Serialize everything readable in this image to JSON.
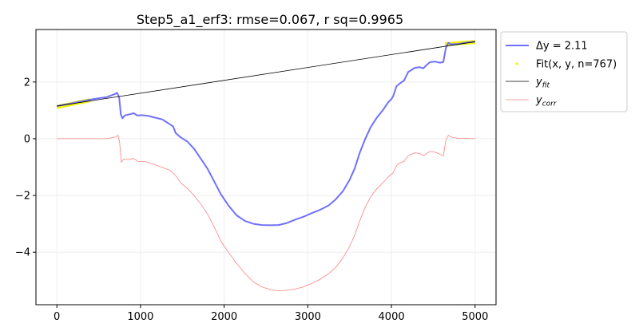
{
  "chart_data": {
    "type": "line",
    "title": "Step5_a1_erf3: rmse=0.067, r sq=0.9965",
    "xlabel": "",
    "ylabel": "",
    "xlim": [
      -250,
      5250
    ],
    "ylim": [
      -5.85,
      3.85
    ],
    "x_ticks": [
      0,
      1000,
      2000,
      3000,
      4000,
      5000
    ],
    "y_ticks": [
      -4,
      -2,
      0,
      2
    ],
    "x_tick_labels": [
      "0",
      "1000",
      "2000",
      "3000",
      "4000",
      "5000"
    ],
    "y_tick_labels": [
      "−4",
      "−2",
      "0",
      "2"
    ],
    "grid": true,
    "legend_position": "outside-right",
    "series": [
      {
        "name": "Δy = 2.11",
        "color": "#7070ff",
        "style": "line",
        "points": [
          [
            0,
            1.15
          ],
          [
            200,
            1.26
          ],
          [
            400,
            1.38
          ],
          [
            600,
            1.47
          ],
          [
            700,
            1.58
          ],
          [
            720,
            1.62
          ],
          [
            745,
            1.45
          ],
          [
            765,
            0.85
          ],
          [
            785,
            0.72
          ],
          [
            810,
            0.82
          ],
          [
            870,
            0.86
          ],
          [
            920,
            0.9
          ],
          [
            960,
            0.82
          ],
          [
            1020,
            0.83
          ],
          [
            1100,
            0.8
          ],
          [
            1180,
            0.74
          ],
          [
            1260,
            0.68
          ],
          [
            1330,
            0.55
          ],
          [
            1390,
            0.43
          ],
          [
            1420,
            0.2
          ],
          [
            1480,
            0.05
          ],
          [
            1560,
            -0.1
          ],
          [
            1640,
            -0.35
          ],
          [
            1720,
            -0.7
          ],
          [
            1800,
            -1.05
          ],
          [
            1880,
            -1.5
          ],
          [
            1960,
            -1.95
          ],
          [
            2050,
            -2.35
          ],
          [
            2150,
            -2.7
          ],
          [
            2250,
            -2.9
          ],
          [
            2350,
            -3.0
          ],
          [
            2450,
            -3.04
          ],
          [
            2550,
            -3.05
          ],
          [
            2650,
            -3.04
          ],
          [
            2750,
            -2.97
          ],
          [
            2850,
            -2.85
          ],
          [
            2950,
            -2.75
          ],
          [
            3050,
            -2.62
          ],
          [
            3150,
            -2.5
          ],
          [
            3250,
            -2.35
          ],
          [
            3330,
            -2.15
          ],
          [
            3420,
            -1.85
          ],
          [
            3500,
            -1.45
          ],
          [
            3560,
            -1.05
          ],
          [
            3620,
            -0.5
          ],
          [
            3680,
            -0.05
          ],
          [
            3750,
            0.4
          ],
          [
            3820,
            0.72
          ],
          [
            3900,
            1.02
          ],
          [
            3960,
            1.28
          ],
          [
            4000,
            1.4
          ],
          [
            4020,
            1.5
          ],
          [
            4060,
            1.85
          ],
          [
            4100,
            1.95
          ],
          [
            4150,
            2.05
          ],
          [
            4200,
            2.35
          ],
          [
            4280,
            2.5
          ],
          [
            4340,
            2.52
          ],
          [
            4380,
            2.48
          ],
          [
            4420,
            2.6
          ],
          [
            4460,
            2.7
          ],
          [
            4520,
            2.72
          ],
          [
            4580,
            2.68
          ],
          [
            4620,
            2.7
          ],
          [
            4650,
            3.2
          ],
          [
            4680,
            3.38
          ],
          [
            4710,
            3.33
          ],
          [
            4800,
            3.34
          ],
          [
            4900,
            3.39
          ],
          [
            5000,
            3.42
          ]
        ]
      },
      {
        "name": "Fit(x, y, n=767)",
        "color": "#f2f200",
        "style": "thick-segments",
        "segments": [
          [
            [
              0,
              1.12
            ],
            [
              400,
              1.36
            ]
          ],
          [
            [
              4640,
              3.33
            ],
            [
              5000,
              3.41
            ]
          ]
        ]
      },
      {
        "name": "y_fit",
        "color": "#000000",
        "style": "line",
        "points": [
          [
            0,
            1.15
          ],
          [
            5000,
            3.42
          ]
        ]
      },
      {
        "name": "y_corr",
        "color": "#ff8080",
        "style": "line",
        "points": [
          [
            0,
            0.0
          ],
          [
            200,
            0.0
          ],
          [
            400,
            0.0
          ],
          [
            600,
            0.0
          ],
          [
            700,
            0.06
          ],
          [
            730,
            0.12
          ],
          [
            750,
            -0.1
          ],
          [
            770,
            -0.82
          ],
          [
            800,
            -0.72
          ],
          [
            850,
            -0.73
          ],
          [
            920,
            -0.7
          ],
          [
            970,
            -0.8
          ],
          [
            1050,
            -0.8
          ],
          [
            1120,
            -0.86
          ],
          [
            1200,
            -0.95
          ],
          [
            1280,
            -1.03
          ],
          [
            1360,
            -1.12
          ],
          [
            1420,
            -1.3
          ],
          [
            1480,
            -1.55
          ],
          [
            1560,
            -1.75
          ],
          [
            1640,
            -2.0
          ],
          [
            1720,
            -2.3
          ],
          [
            1800,
            -2.65
          ],
          [
            1880,
            -3.1
          ],
          [
            1960,
            -3.6
          ],
          [
            2050,
            -4.0
          ],
          [
            2150,
            -4.4
          ],
          [
            2250,
            -4.75
          ],
          [
            2350,
            -5.05
          ],
          [
            2450,
            -5.22
          ],
          [
            2550,
            -5.32
          ],
          [
            2650,
            -5.36
          ],
          [
            2750,
            -5.34
          ],
          [
            2850,
            -5.3
          ],
          [
            2950,
            -5.22
          ],
          [
            3050,
            -5.1
          ],
          [
            3150,
            -4.95
          ],
          [
            3250,
            -4.75
          ],
          [
            3330,
            -4.55
          ],
          [
            3420,
            -4.2
          ],
          [
            3500,
            -3.8
          ],
          [
            3560,
            -3.4
          ],
          [
            3620,
            -2.9
          ],
          [
            3680,
            -2.45
          ],
          [
            3750,
            -2.05
          ],
          [
            3820,
            -1.78
          ],
          [
            3900,
            -1.55
          ],
          [
            3960,
            -1.35
          ],
          [
            4000,
            -1.25
          ],
          [
            4020,
            -1.2
          ],
          [
            4060,
            -0.95
          ],
          [
            4100,
            -0.85
          ],
          [
            4150,
            -0.8
          ],
          [
            4200,
            -0.6
          ],
          [
            4280,
            -0.5
          ],
          [
            4340,
            -0.52
          ],
          [
            4380,
            -0.6
          ],
          [
            4420,
            -0.52
          ],
          [
            4460,
            -0.45
          ],
          [
            4520,
            -0.47
          ],
          [
            4580,
            -0.55
          ],
          [
            4620,
            -0.6
          ],
          [
            4650,
            -0.05
          ],
          [
            4680,
            0.12
          ],
          [
            4710,
            0.06
          ],
          [
            4800,
            0.01
          ],
          [
            4900,
            0.01
          ],
          [
            5000,
            0.0
          ]
        ]
      }
    ],
    "legend": [
      {
        "label": "Δy = 2.11",
        "kind": "text",
        "color": "#7070ff"
      },
      {
        "label": "Fit(x, y, n=767)",
        "kind": "text",
        "color": "#f2f200"
      },
      {
        "label": "y",
        "sub": "fit",
        "kind": "math",
        "color": "#000000"
      },
      {
        "label": "y",
        "sub": "corr",
        "kind": "math",
        "color": "#ff8080"
      }
    ]
  }
}
